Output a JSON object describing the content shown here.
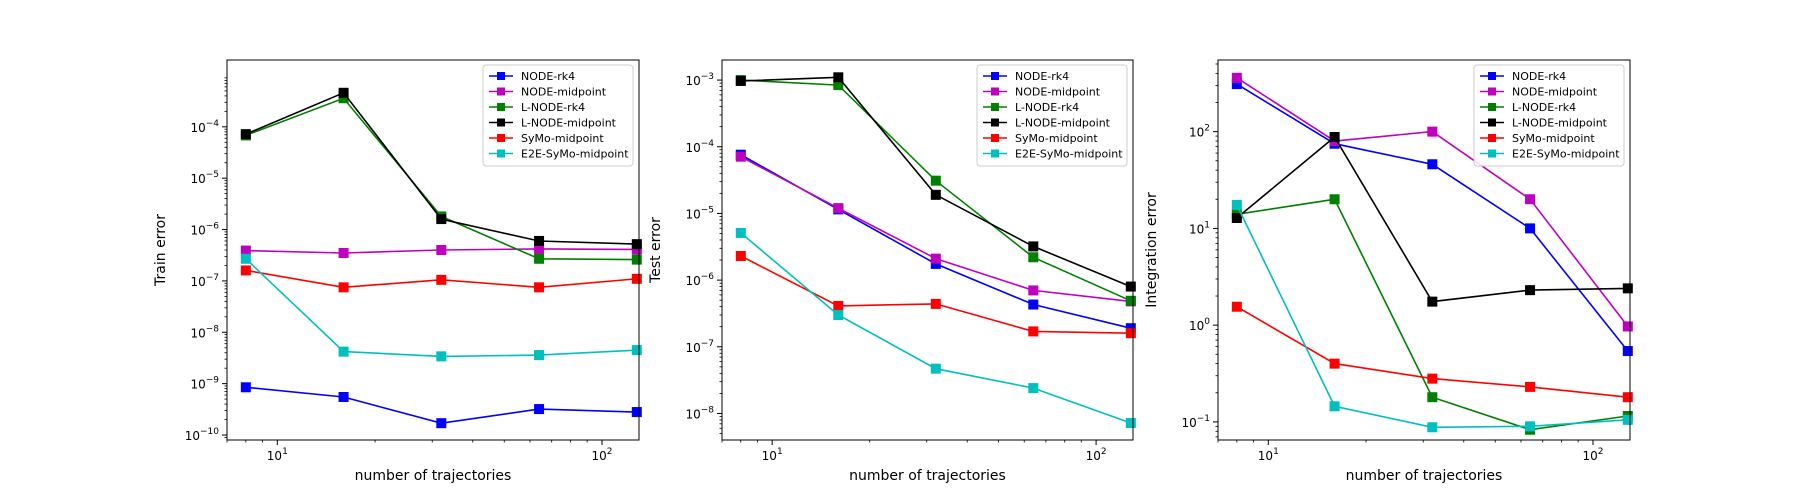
{
  "chart_data": [
    {
      "type": "line",
      "xlabel": "number of trajectories",
      "ylabel": "Train error",
      "xscale": "log",
      "yscale": "log",
      "xlim": [
        7,
        130
      ],
      "ylim": [
        8e-11,
        0.002
      ],
      "xticks": [
        {
          "value": 10,
          "label": "10",
          "exp": "1"
        },
        {
          "value": 100,
          "label": "10",
          "exp": "2"
        }
      ],
      "yticks": [
        {
          "value": 1e-10,
          "label": "10",
          "exp": "−10"
        },
        {
          "value": 1e-09,
          "label": "10",
          "exp": "−9"
        },
        {
          "value": 1e-08,
          "label": "10",
          "exp": "−8"
        },
        {
          "value": 1e-07,
          "label": "10",
          "exp": "−7"
        },
        {
          "value": 1e-06,
          "label": "10",
          "exp": "−6"
        },
        {
          "value": 1e-05,
          "label": "10",
          "exp": "−5"
        },
        {
          "value": 0.0001,
          "label": "10",
          "exp": "−4"
        }
      ],
      "legend_position": "top-right",
      "x": [
        8,
        16,
        32,
        64,
        128
      ],
      "series": [
        {
          "name": "NODE-rk4",
          "color": "#0000ff",
          "values": [
            8.5e-10,
            5.5e-10,
            1.7e-10,
            3.2e-10,
            2.8e-10
          ]
        },
        {
          "name": "NODE-midpoint",
          "color": "#bf00bf",
          "values": [
            3.9e-07,
            3.5e-07,
            4e-07,
            4.2e-07,
            4.1e-07
          ]
        },
        {
          "name": "L-NODE-rk4",
          "color": "#008000",
          "values": [
            6.8e-05,
            0.00036,
            1.8e-06,
            2.7e-07,
            2.6e-07
          ]
        },
        {
          "name": "L-NODE-midpoint",
          "color": "#000000",
          "values": [
            7.2e-05,
            0.00046,
            1.6e-06,
            6e-07,
            5.2e-07
          ]
        },
        {
          "name": "SyMo-midpoint",
          "color": "#ff0000",
          "values": [
            1.6e-07,
            7.5e-08,
            1.05e-07,
            7.5e-08,
            1.1e-07
          ]
        },
        {
          "name": "E2E-SyMo-midpoint",
          "color": "#00bfbf",
          "values": [
            2.7e-07,
            4.2e-09,
            3.4e-09,
            3.6e-09,
            4.5e-09
          ]
        }
      ]
    },
    {
      "type": "line",
      "xlabel": "number of trajectories",
      "ylabel": "Test error",
      "xscale": "log",
      "yscale": "log",
      "xlim": [
        7,
        130
      ],
      "ylim": [
        4e-09,
        0.002
      ],
      "xticks": [
        {
          "value": 10,
          "label": "10",
          "exp": "1"
        },
        {
          "value": 100,
          "label": "10",
          "exp": "2"
        }
      ],
      "yticks": [
        {
          "value": 1e-08,
          "label": "10",
          "exp": "−8"
        },
        {
          "value": 1e-07,
          "label": "10",
          "exp": "−7"
        },
        {
          "value": 1e-06,
          "label": "10",
          "exp": "−6"
        },
        {
          "value": 1e-05,
          "label": "10",
          "exp": "−5"
        },
        {
          "value": 0.0001,
          "label": "10",
          "exp": "−4"
        },
        {
          "value": 0.001,
          "label": "10",
          "exp": "−3"
        }
      ],
      "legend_position": "top-right",
      "x": [
        8,
        16,
        32,
        64,
        128
      ],
      "series": [
        {
          "name": "NODE-rk4",
          "color": "#0000ff",
          "values": [
            7.6e-05,
            1.15e-05,
            1.75e-06,
            4.3e-07,
            1.9e-07
          ]
        },
        {
          "name": "NODE-midpoint",
          "color": "#bf00bf",
          "values": [
            7.1e-05,
            1.2e-05,
            2.1e-06,
            7e-07,
            4.8e-07
          ]
        },
        {
          "name": "L-NODE-rk4",
          "color": "#008000",
          "values": [
            0.001,
            0.00084,
            3.1e-05,
            2.2e-06,
            4.9e-07
          ]
        },
        {
          "name": "L-NODE-midpoint",
          "color": "#000000",
          "values": [
            0.00097,
            0.0011,
            1.9e-05,
            3.2e-06,
            8e-07
          ]
        },
        {
          "name": "SyMo-midpoint",
          "color": "#ff0000",
          "values": [
            2.3e-06,
            4.1e-07,
            4.4e-07,
            1.7e-07,
            1.6e-07
          ]
        },
        {
          "name": "E2E-SyMo-midpoint",
          "color": "#00bfbf",
          "values": [
            5.1e-06,
            3e-07,
            4.7e-08,
            2.4e-08,
            7.2e-09
          ]
        }
      ]
    },
    {
      "type": "line",
      "xlabel": "number of trajectories",
      "ylabel": "Integration error",
      "xscale": "log",
      "yscale": "log",
      "xlim": [
        7,
        130
      ],
      "ylim": [
        0.065,
        550
      ],
      "xticks": [
        {
          "value": 10,
          "label": "10",
          "exp": "1"
        },
        {
          "value": 100,
          "label": "10",
          "exp": "2"
        }
      ],
      "yticks": [
        {
          "value": 0.1,
          "label": "10",
          "exp": "−1"
        },
        {
          "value": 1,
          "label": "10",
          "exp": "0"
        },
        {
          "value": 10,
          "label": "10",
          "exp": "1"
        },
        {
          "value": 100,
          "label": "10",
          "exp": "2"
        }
      ],
      "legend_position": "top-right",
      "x": [
        8,
        16,
        32,
        64,
        128
      ],
      "series": [
        {
          "name": "NODE-rk4",
          "color": "#0000ff",
          "values": [
            310,
            75,
            46,
            10,
            0.54
          ]
        },
        {
          "name": "NODE-midpoint",
          "color": "#bf00bf",
          "values": [
            360,
            80,
            100,
            20,
            0.97
          ]
        },
        {
          "name": "L-NODE-rk4",
          "color": "#008000",
          "values": [
            14,
            20,
            0.18,
            0.083,
            0.115
          ]
        },
        {
          "name": "L-NODE-midpoint",
          "color": "#000000",
          "values": [
            12.8,
            88,
            1.75,
            2.3,
            2.4
          ]
        },
        {
          "name": "SyMo-midpoint",
          "color": "#ff0000",
          "values": [
            1.55,
            0.4,
            0.28,
            0.23,
            0.18
          ]
        },
        {
          "name": "E2E-SyMo-midpoint",
          "color": "#00bfbf",
          "values": [
            17.5,
            0.145,
            0.088,
            0.09,
            0.105
          ]
        }
      ]
    }
  ]
}
